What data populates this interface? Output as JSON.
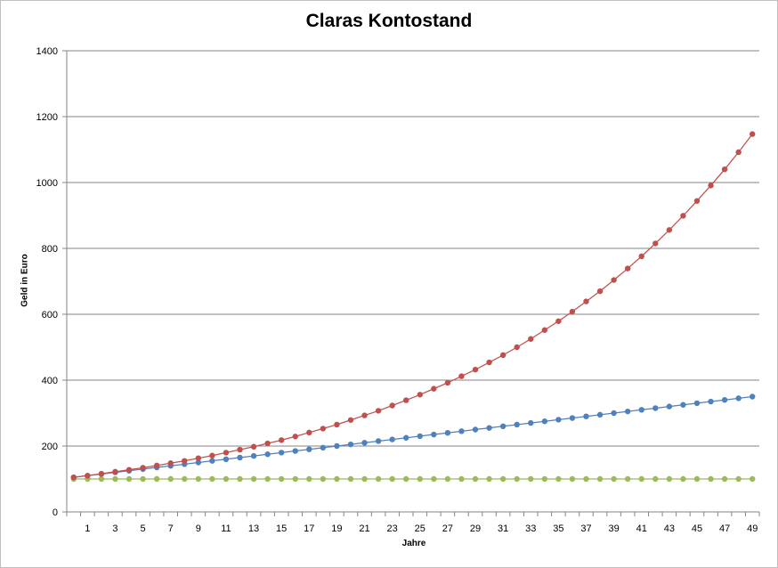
{
  "chart_data": {
    "type": "line",
    "title": "Claras Kontostand",
    "xlabel": "Jahre",
    "ylabel": "Geld in Euro",
    "ylim": [
      0,
      1400
    ],
    "y_ticks": [
      0,
      200,
      400,
      600,
      800,
      1000,
      1200,
      1400
    ],
    "x_tick_labels": [
      "1",
      "3",
      "5",
      "7",
      "9",
      "11",
      "13",
      "15",
      "17",
      "19",
      "21",
      "23",
      "25",
      "27",
      "29",
      "31",
      "33",
      "35",
      "37",
      "39",
      "41",
      "43",
      "45",
      "47",
      "49"
    ],
    "grid": "horizontal",
    "legend": "none",
    "x": [
      0,
      1,
      2,
      3,
      4,
      5,
      6,
      7,
      8,
      9,
      10,
      11,
      12,
      13,
      14,
      15,
      16,
      17,
      18,
      19,
      20,
      21,
      22,
      23,
      24,
      25,
      26,
      27,
      28,
      29,
      30,
      31,
      32,
      33,
      34,
      35,
      36,
      37,
      38,
      39,
      40,
      41,
      42,
      43,
      44,
      45,
      46,
      47,
      48,
      49
    ],
    "series": [
      {
        "color": "#c0504d",
        "values": [
          105,
          110,
          116,
          122,
          128,
          134,
          141,
          148,
          155,
          163,
          171,
          180,
          189,
          198,
          208,
          218,
          229,
          241,
          253,
          265,
          279,
          293,
          307,
          323,
          339,
          356,
          374,
          392,
          412,
          432,
          454,
          476,
          500,
          525,
          552,
          579,
          608,
          639,
          670,
          704,
          739,
          776,
          815,
          856,
          899,
          944,
          991,
          1040,
          1092,
          1147
        ]
      },
      {
        "color": "#4f81bd",
        "values": [
          105,
          110,
          115,
          120,
          125,
          130,
          135,
          140,
          145,
          150,
          155,
          160,
          165,
          170,
          175,
          180,
          185,
          190,
          195,
          200,
          205,
          210,
          215,
          220,
          225,
          230,
          235,
          240,
          245,
          250,
          255,
          260,
          265,
          270,
          275,
          280,
          285,
          290,
          295,
          300,
          305,
          310,
          315,
          320,
          325,
          330,
          335,
          340,
          345,
          350
        ]
      },
      {
        "color": "#9bbb59",
        "values": [
          100,
          100,
          100,
          100,
          100,
          100,
          100,
          100,
          100,
          100,
          100,
          100,
          100,
          100,
          100,
          100,
          100,
          100,
          100,
          100,
          100,
          100,
          100,
          100,
          100,
          100,
          100,
          100,
          100,
          100,
          100,
          100,
          100,
          100,
          100,
          100,
          100,
          100,
          100,
          100,
          100,
          100,
          100,
          100,
          100,
          100,
          100,
          100,
          100,
          100
        ]
      }
    ]
  }
}
